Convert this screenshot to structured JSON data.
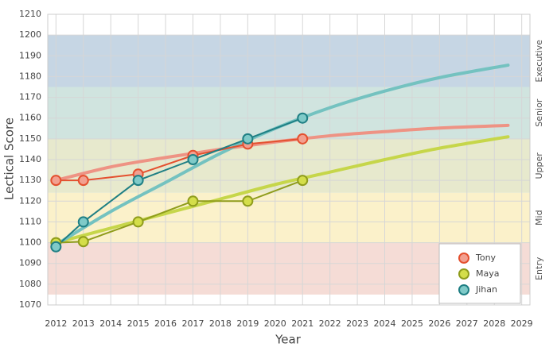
{
  "chart_data": {
    "type": "line",
    "xlabel": "Year",
    "ylabel": "Lectical Score",
    "xlim": [
      2011.7,
      2029.3
    ],
    "ylim": [
      1070,
      1210
    ],
    "xticks": [
      2012,
      2013,
      2014,
      2015,
      2016,
      2017,
      2018,
      2019,
      2020,
      2021,
      2022,
      2023,
      2024,
      2025,
      2026,
      2027,
      2028,
      2029
    ],
    "yticks": [
      1070,
      1080,
      1090,
      1100,
      1110,
      1120,
      1130,
      1140,
      1150,
      1160,
      1170,
      1180,
      1190,
      1200,
      1210
    ],
    "grid": true,
    "legend": "lower right",
    "bands": [
      {
        "label": "Entry",
        "from": 1075,
        "to": 1100,
        "color": "#f5dcd6"
      },
      {
        "label": "Mid",
        "from": 1100,
        "to": 1124,
        "color": "#fbf1ca"
      },
      {
        "label": "Upper",
        "from": 1124,
        "to": 1150,
        "color": "#e7e9cd"
      },
      {
        "label": "Senior",
        "from": 1150,
        "to": 1175,
        "color": "#d0e4df"
      },
      {
        "label": "Executive",
        "from": 1175,
        "to": 1200,
        "color": "#c6d6e4"
      }
    ],
    "series": [
      {
        "name": "Tony",
        "color": "#e4502f",
        "marker_fill": "#f2a090",
        "trend_color": "#ee9384",
        "x": [
          2012,
          2013,
          2015,
          2017,
          2019,
          2021
        ],
        "values": [
          1130,
          1130,
          1133,
          1142,
          1147.5,
          1150
        ],
        "trend": {
          "x": [
            2012,
            2014,
            2016,
            2018,
            2020,
            2022,
            2024,
            2026,
            2028.5
          ],
          "values": [
            1130,
            1136.5,
            1141,
            1145,
            1148.5,
            1151.5,
            1153.5,
            1155.2,
            1156.5
          ]
        }
      },
      {
        "name": "Maya",
        "color": "#8f9c1c",
        "marker_fill": "#d4de4a",
        "trend_color": "#c6d64a",
        "x": [
          2012,
          2013,
          2015,
          2017,
          2019,
          2021
        ],
        "values": [
          1100,
          1100.5,
          1110,
          1120,
          1120,
          1130
        ],
        "trend": {
          "x": [
            2012,
            2014,
            2016,
            2018,
            2020,
            2022,
            2024,
            2026,
            2028.5
          ],
          "values": [
            1100,
            1107,
            1114,
            1121,
            1128,
            1134,
            1140,
            1145.5,
            1151
          ]
        }
      },
      {
        "name": "Jihan",
        "color": "#1f7f84",
        "marker_fill": "#7fcac8",
        "trend_color": "#74c2c0",
        "x": [
          2012,
          2013,
          2015,
          2017,
          2019,
          2021
        ],
        "values": [
          1098,
          1110,
          1130,
          1140,
          1150,
          1160
        ],
        "trend": {
          "x": [
            2012,
            2014,
            2016,
            2018,
            2020,
            2022,
            2024,
            2026,
            2028.5
          ],
          "values": [
            1099,
            1115,
            1129,
            1143,
            1155,
            1165,
            1173,
            1179.5,
            1185.5
          ]
        }
      }
    ]
  }
}
